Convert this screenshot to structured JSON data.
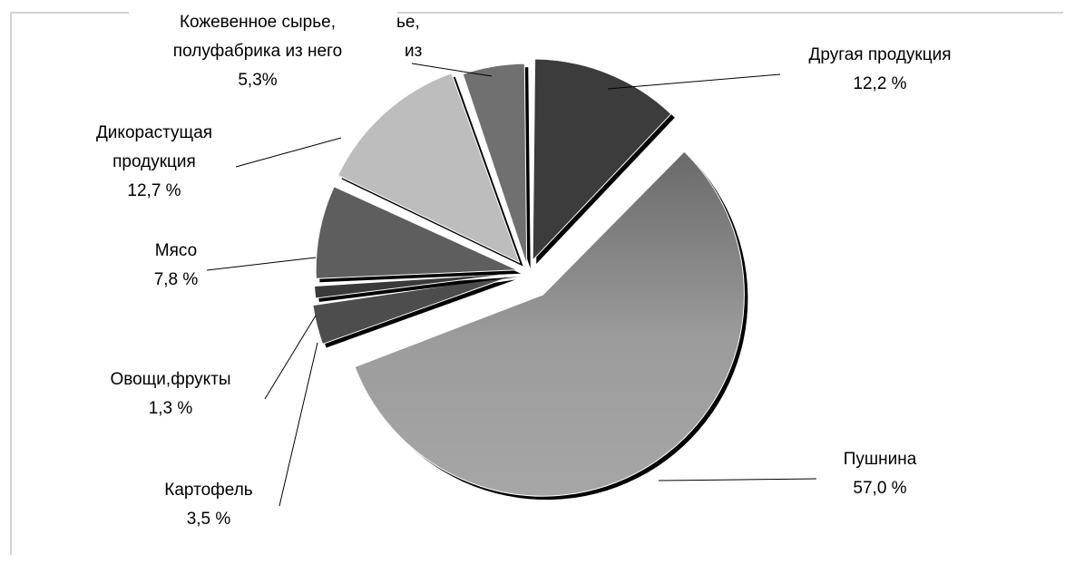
{
  "chart_data": {
    "type": "pie",
    "style": "exploded 3D-shaded pie, grayscale",
    "legend": "none (data labels with leader lines)",
    "slices": [
      {
        "label_lines": [
          "Другая продукция"
        ],
        "value_label": "12,2 %",
        "value": 12.2,
        "color": "#3c3c3c"
      },
      {
        "label_lines": [
          "Пушнина"
        ],
        "value_label": "57,0 %",
        "value": 57.0,
        "color": "#8a8a8a"
      },
      {
        "label_lines": [
          "Картофель"
        ],
        "value_label": "3,5 %",
        "value": 3.5,
        "color": "#4d4d4d"
      },
      {
        "label_lines": [
          "Овощи,фрукты"
        ],
        "value_label": "1,3 %",
        "value": 1.3,
        "color": "#3a3a3a"
      },
      {
        "label_lines": [
          "Мясо"
        ],
        "value_label": "7,8 %",
        "value": 7.8,
        "color": "#5e5e5e"
      },
      {
        "label_lines": [
          "Дикорастущая",
          "продукция"
        ],
        "value_label": "12,7 %",
        "value": 12.7,
        "color": "#bdbdbd"
      },
      {
        "label_lines": [
          "Кожевенное сырье,",
          "полуфабрика из него"
        ],
        "value_label": "5,3%",
        "value": 5.3,
        "color": "#707070"
      }
    ],
    "overlap_fragments": [
      "ье,",
      "из"
    ]
  }
}
